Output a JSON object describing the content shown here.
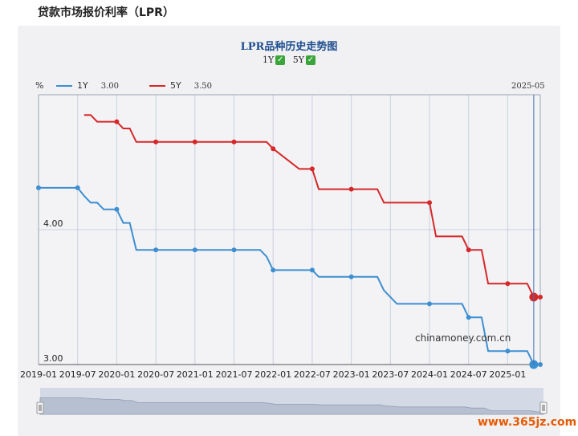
{
  "page_title": "贷款市场报价利率（LPR）",
  "watermark": "chinamoney.com.cn",
  "corner_mark": "www.365jz.com",
  "chart_data": {
    "type": "line",
    "title": "LPR品种历史走势图",
    "toggles": [
      {
        "label": "1Y",
        "checked": true
      },
      {
        "label": "5Y",
        "checked": true
      }
    ],
    "ylabel": "%",
    "ylim": [
      3.0,
      5.0
    ],
    "y_ticks": [
      3.0,
      4.0
    ],
    "y_tick_labels": [
      "3.00",
      "4.00"
    ],
    "x_ticks": [
      "2019-01",
      "2019-07",
      "2020-01",
      "2020-07",
      "2021-01",
      "2021-07",
      "2022-01",
      "2022-07",
      "2023-01",
      "2023-07",
      "2024-01",
      "2024-07",
      "2025-01"
    ],
    "x_tick_labels": [
      "2019-01",
      "2019-07",
      "2020-01",
      "2020-07",
      "2021-01",
      "2021-07",
      "2022-01",
      "2022-07",
      "2023-01",
      "2023-07",
      "2024-01",
      "2024-07",
      "2025-01"
    ],
    "xlim": [
      "2019-01",
      "2025-06"
    ],
    "crosshair_date": "2025-05",
    "series": [
      {
        "name": "1Y",
        "color": "#3d8fd1",
        "current_value": "3.00",
        "x": [
          "2019-01",
          "2019-07",
          "2019-08",
          "2019-09",
          "2019-10",
          "2019-11",
          "2020-01",
          "2020-02",
          "2020-03",
          "2020-04",
          "2020-07",
          "2021-01",
          "2021-07",
          "2021-11",
          "2021-12",
          "2022-01",
          "2022-07",
          "2022-08",
          "2023-01",
          "2023-05",
          "2023-06",
          "2023-08",
          "2024-01",
          "2024-06",
          "2024-07",
          "2024-09",
          "2024-10",
          "2025-01",
          "2025-04",
          "2025-05",
          "2025-06"
        ],
        "values": [
          4.31,
          4.31,
          4.25,
          4.2,
          4.2,
          4.15,
          4.15,
          4.05,
          4.05,
          3.85,
          3.85,
          3.85,
          3.85,
          3.85,
          3.8,
          3.7,
          3.7,
          3.65,
          3.65,
          3.65,
          3.55,
          3.45,
          3.45,
          3.45,
          3.35,
          3.35,
          3.1,
          3.1,
          3.1,
          3.0,
          3.0
        ]
      },
      {
        "name": "5Y",
        "color": "#d62828",
        "current_value": "3.50",
        "x": [
          "2019-08",
          "2019-09",
          "2019-10",
          "2019-11",
          "2020-01",
          "2020-02",
          "2020-03",
          "2020-04",
          "2020-07",
          "2021-01",
          "2021-07",
          "2021-12",
          "2022-01",
          "2022-05",
          "2022-07",
          "2022-08",
          "2023-01",
          "2023-05",
          "2023-06",
          "2024-01",
          "2024-02",
          "2024-06",
          "2024-07",
          "2024-09",
          "2024-10",
          "2025-01",
          "2025-04",
          "2025-05",
          "2025-06"
        ],
        "values": [
          4.85,
          4.85,
          4.8,
          4.8,
          4.8,
          4.75,
          4.75,
          4.65,
          4.65,
          4.65,
          4.65,
          4.65,
          4.6,
          4.45,
          4.45,
          4.3,
          4.3,
          4.3,
          4.2,
          4.2,
          3.95,
          3.95,
          3.85,
          3.85,
          3.6,
          3.6,
          3.6,
          3.5,
          3.5
        ]
      }
    ],
    "markers": {
      "1Y": [
        "2019-01",
        "2019-07",
        "2020-01",
        "2020-07",
        "2021-01",
        "2021-07",
        "2022-01",
        "2022-07",
        "2023-01",
        "2023-07",
        "2024-01",
        "2024-07",
        "2025-01",
        "2025-05",
        "2025-06"
      ],
      "5Y": [
        "2020-01",
        "2020-07",
        "2021-01",
        "2021-07",
        "2022-01",
        "2022-07",
        "2023-01",
        "2023-07",
        "2024-01",
        "2024-07",
        "2025-01",
        "2025-05",
        "2025-06"
      ]
    }
  }
}
